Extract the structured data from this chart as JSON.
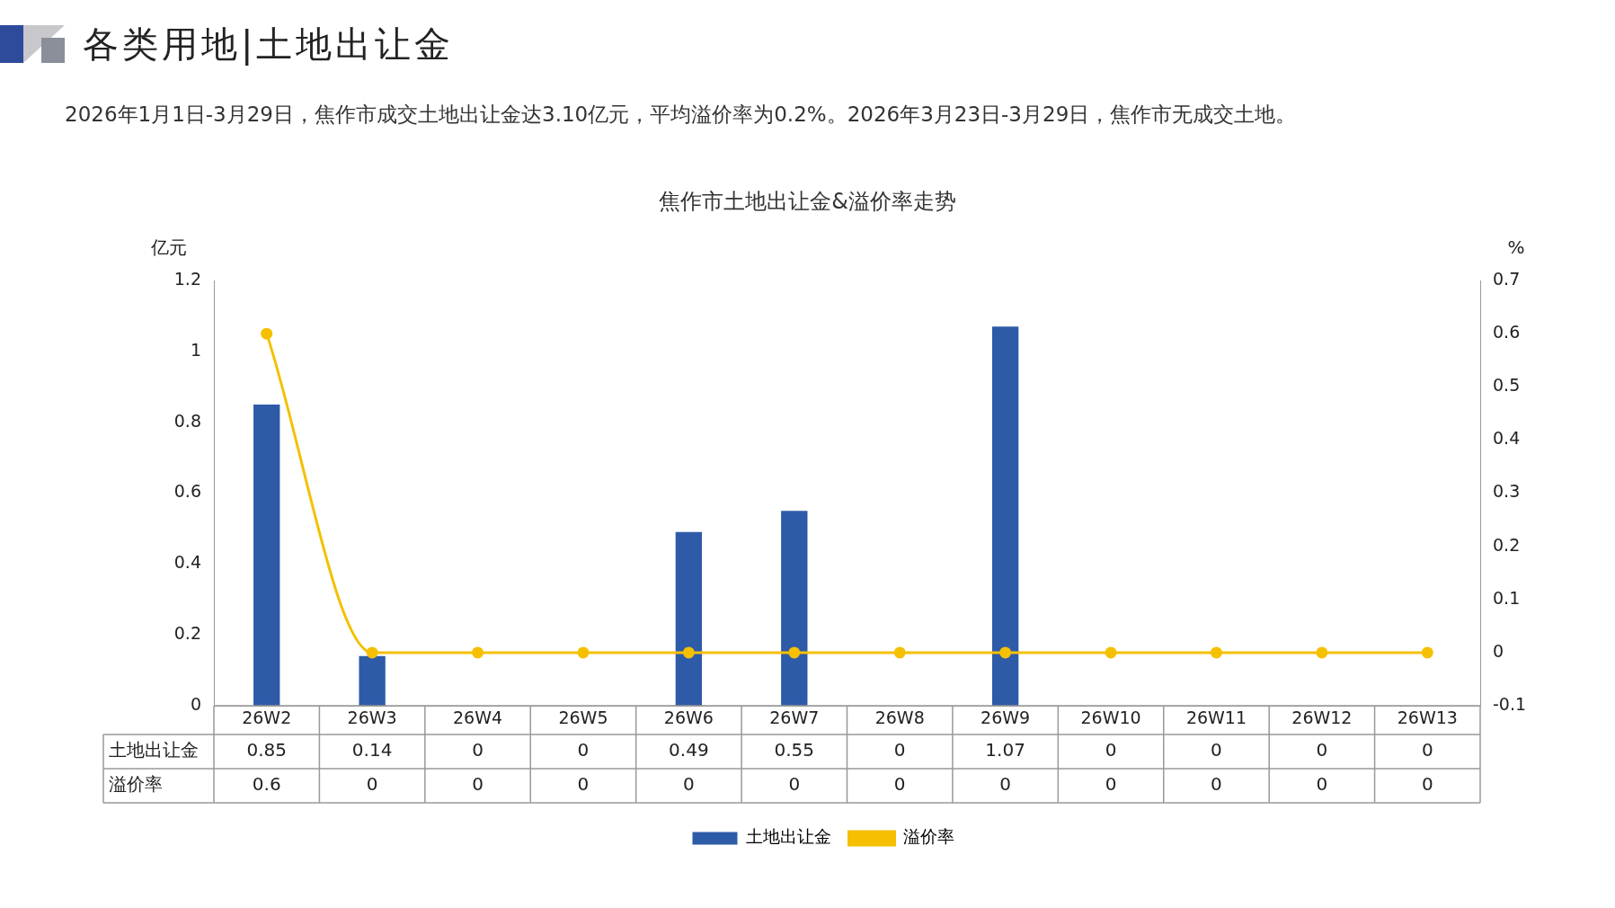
{
  "chart_data": {
    "type": "bar",
    "title": "各类用地|土地出让金",
    "subtitle": "2026年1月1日-3月29日，焦作市成交土地出让金达3.10亿元，平均溢价率为0.2%。2026年3月23日-3月29日，焦作市无成交土地。",
    "annotations": [
      "焦作市土地出让金&溢价率走势"
    ],
    "ylabel": "亿元",
    "y2label": "%",
    "categories": [
      "26W2",
      "26W3",
      "26W4",
      "26W5",
      "26W6",
      "26W7",
      "26W8",
      "26W9",
      "26W10",
      "26W11",
      "26W12",
      "26W13"
    ],
    "series": [
      {
        "name": "土地出让金",
        "color": "#2e5ba8",
        "values": [
          0.85,
          0.14,
          0,
          0,
          0.49,
          0.55,
          0,
          1.07,
          0,
          0,
          0,
          0
        ]
      },
      {
        "name": "溢价率",
        "type": "line",
        "axis": "y2",
        "color": "#f5c000",
        "values": [
          0.6,
          0,
          0,
          0,
          0,
          0,
          0,
          0,
          0,
          0,
          0,
          0
        ]
      }
    ],
    "ylim": [
      0,
      1.2
    ],
    "yticks": [
      0,
      0.2,
      0.4,
      0.6,
      0.8,
      1,
      1.2
    ],
    "y2lim": [
      -0.1,
      0.7
    ],
    "y2ticks": [
      -0.1,
      0,
      0.1,
      0.2,
      0.3,
      0.4,
      0.5,
      0.6,
      0.7
    ],
    "data_labels": true,
    "legend": "bottom",
    "marker": "circle",
    "grid": false
  }
}
